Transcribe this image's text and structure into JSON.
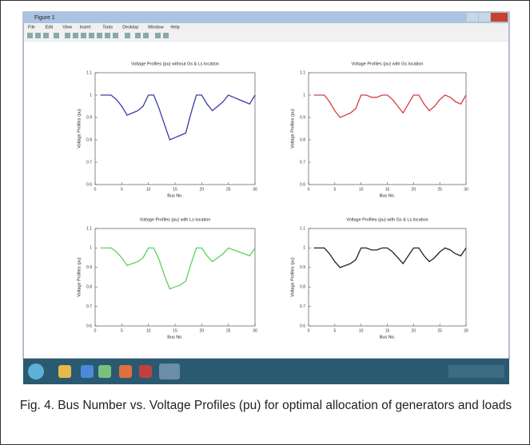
{
  "window": {
    "title": "Figure 1",
    "menus": [
      "File",
      "Edit",
      "View",
      "Insert",
      "Tools",
      "Desktop",
      "Window",
      "Help"
    ]
  },
  "chart_data": [
    {
      "type": "line",
      "title": "Voltage Profiles (pu) without Gs & Ls location",
      "x_label": "Bus No.",
      "y_label": "Voltage Profiles (pu)",
      "x": [
        1,
        2,
        3,
        4,
        5,
        6,
        7,
        8,
        9,
        10,
        11,
        12,
        13,
        14,
        15,
        16,
        17,
        18,
        19,
        20,
        21,
        22,
        23,
        24,
        25,
        26,
        27,
        28,
        29,
        30
      ],
      "series": [
        {
          "color": "#3a3aa8",
          "values": [
            1,
            1,
            1,
            0.98,
            0.95,
            0.91,
            0.92,
            0.93,
            0.95,
            1,
            1,
            0.94,
            0.87,
            0.8,
            0.81,
            0.82,
            0.83,
            0.92,
            1,
            1,
            0.96,
            0.93,
            0.95,
            0.97,
            1,
            0.99,
            0.98,
            0.97,
            0.96,
            1
          ]
        }
      ],
      "xlim": [
        0,
        30
      ],
      "xticks": [
        0,
        5,
        10,
        15,
        20,
        25,
        30
      ],
      "ylim": [
        0.6,
        1.1
      ],
      "yticks": [
        0.6,
        0.7,
        0.8,
        0.9,
        1,
        1.1
      ]
    },
    {
      "type": "line",
      "title": "Voltage Profiles (pu) with Gs location",
      "x_label": "Bus No.",
      "y_label": "Voltage Profiles (pu)",
      "x": [
        1,
        2,
        3,
        4,
        5,
        6,
        7,
        8,
        9,
        10,
        11,
        12,
        13,
        14,
        15,
        16,
        17,
        18,
        19,
        20,
        21,
        22,
        23,
        24,
        25,
        26,
        27,
        28,
        29,
        30
      ],
      "series": [
        {
          "color": "#d04040",
          "values": [
            1,
            1,
            1,
            0.97,
            0.93,
            0.9,
            0.91,
            0.92,
            0.94,
            1,
            1,
            0.99,
            0.99,
            1,
            1,
            0.98,
            0.95,
            0.92,
            0.96,
            1,
            1,
            0.96,
            0.93,
            0.95,
            0.98,
            1,
            0.99,
            0.97,
            0.96,
            1
          ]
        }
      ],
      "xlim": [
        0,
        30
      ],
      "xticks": [
        0,
        5,
        10,
        15,
        20,
        25,
        30
      ],
      "ylim": [
        0.6,
        1.1
      ],
      "yticks": [
        0.6,
        0.7,
        0.8,
        0.9,
        1,
        1.1
      ]
    },
    {
      "type": "line",
      "title": "Voltage Profiles (pu) with Ls location",
      "x_label": "Bus No.",
      "y_label": "Voltage Profiles (pu)",
      "x": [
        1,
        2,
        3,
        4,
        5,
        6,
        7,
        8,
        9,
        10,
        11,
        12,
        13,
        14,
        15,
        16,
        17,
        18,
        19,
        20,
        21,
        22,
        23,
        24,
        25,
        26,
        27,
        28,
        29,
        30
      ],
      "series": [
        {
          "color": "#5cd05c",
          "values": [
            1,
            1,
            1,
            0.98,
            0.95,
            0.91,
            0.92,
            0.93,
            0.95,
            1,
            1,
            0.94,
            0.86,
            0.79,
            0.8,
            0.81,
            0.83,
            0.92,
            1,
            1,
            0.96,
            0.93,
            0.95,
            0.97,
            1,
            0.99,
            0.98,
            0.97,
            0.96,
            1
          ]
        }
      ],
      "xlim": [
        0,
        30
      ],
      "xticks": [
        0,
        5,
        10,
        15,
        20,
        25,
        30
      ],
      "ylim": [
        0.6,
        1.1
      ],
      "yticks": [
        0.6,
        0.7,
        0.8,
        0.9,
        1,
        1.1
      ]
    },
    {
      "type": "line",
      "title": "Voltage Profiles (pu) with Gs & Ls location",
      "x_label": "Bus No.",
      "y_label": "Voltage Profiles (pu)",
      "x": [
        1,
        2,
        3,
        4,
        5,
        6,
        7,
        8,
        9,
        10,
        11,
        12,
        13,
        14,
        15,
        16,
        17,
        18,
        19,
        20,
        21,
        22,
        23,
        24,
        25,
        26,
        27,
        28,
        29,
        30
      ],
      "series": [
        {
          "color": "#222222",
          "values": [
            1,
            1,
            1,
            0.97,
            0.93,
            0.9,
            0.91,
            0.92,
            0.94,
            1,
            1,
            0.99,
            0.99,
            1,
            1,
            0.98,
            0.95,
            0.92,
            0.96,
            1,
            1,
            0.96,
            0.93,
            0.95,
            0.98,
            1,
            0.99,
            0.97,
            0.96,
            1
          ]
        }
      ],
      "xlim": [
        0,
        30
      ],
      "xticks": [
        0,
        5,
        10,
        15,
        20,
        25,
        30
      ],
      "ylim": [
        0.6,
        1.1
      ],
      "yticks": [
        0.6,
        0.7,
        0.8,
        0.9,
        1,
        1.1
      ]
    }
  ],
  "caption": "Fig. 4. Bus Number vs. Voltage Profiles (pu) for optimal allocation of generators and loads"
}
